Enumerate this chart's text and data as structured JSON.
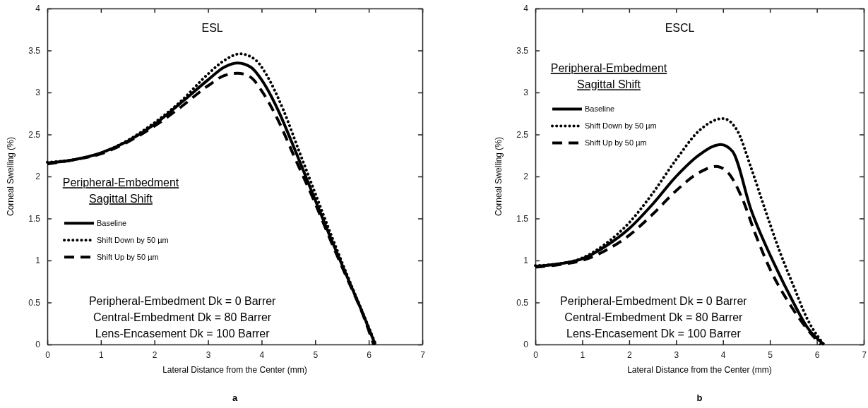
{
  "chart_data": [
    {
      "type": "line",
      "title": "ESL",
      "xlabel": "Lateral Distance from the Center (mm)",
      "ylabel": "Corneal Swelling (%)",
      "legend_title": "Peripheral-Embedment\nSagittal Shift",
      "legend": "left",
      "xlim": [
        0,
        7
      ],
      "xticks": [
        0,
        1,
        2,
        3,
        4,
        5,
        6,
        7
      ],
      "ylim": [
        0,
        4
      ],
      "yticks": [
        0,
        0.5,
        1,
        1.5,
        2,
        2.5,
        3,
        3.5,
        4
      ],
      "annotations": [
        "Peripheral-Embedment Dk = 0 Barrer",
        "Central-Embedment Dk = 80 Barrer",
        "Lens-Encasement Dk = 100 Barrer",
        "a"
      ],
      "series": [
        {
          "name": "Baseline",
          "color": "#000000",
          "line_style": "solid",
          "x": [
            0,
            0.5,
            1,
            1.5,
            2,
            2.5,
            3,
            3.3,
            3.55,
            3.8,
            4,
            4.3,
            4.6,
            5,
            5.3,
            5.6,
            5.9,
            6.12
          ],
          "values": [
            2.16,
            2.2,
            2.28,
            2.42,
            2.62,
            2.88,
            3.15,
            3.3,
            3.35,
            3.3,
            3.15,
            2.8,
            2.35,
            1.72,
            1.25,
            0.8,
            0.35,
            0
          ]
        },
        {
          "name": "Shift Down by 50 µm",
          "color": "#000000",
          "line_style": "dotted",
          "x": [
            0,
            0.5,
            1,
            1.5,
            2,
            2.5,
            3,
            3.3,
            3.6,
            3.9,
            4.1,
            4.4,
            4.7,
            5,
            5.3,
            5.6,
            5.9,
            6.13
          ],
          "values": [
            2.17,
            2.2,
            2.28,
            2.43,
            2.64,
            2.9,
            3.22,
            3.38,
            3.46,
            3.38,
            3.2,
            2.8,
            2.3,
            1.8,
            1.3,
            0.82,
            0.36,
            0
          ]
        },
        {
          "name": "Shift Up by 50 µm",
          "color": "#000000",
          "line_style": "dashed",
          "x": [
            0,
            0.5,
            1,
            1.5,
            2,
            2.5,
            3,
            3.3,
            3.55,
            3.8,
            4,
            4.3,
            4.6,
            5,
            5.3,
            5.6,
            5.9,
            6.09
          ],
          "values": [
            2.15,
            2.2,
            2.27,
            2.41,
            2.6,
            2.83,
            3.08,
            3.2,
            3.23,
            3.18,
            3.02,
            2.68,
            2.25,
            1.68,
            1.22,
            0.78,
            0.34,
            0
          ]
        }
      ]
    },
    {
      "type": "line",
      "title": "ESCL",
      "xlabel": "Lateral Distance from the Center (mm)",
      "ylabel": "Corneal Swelling (%)",
      "legend_title": "Peripheral-Embedment\nSagittal Shift",
      "legend": "top left",
      "xlim": [
        0,
        7
      ],
      "xticks": [
        0,
        1,
        2,
        3,
        4,
        5,
        6,
        7
      ],
      "ylim": [
        0,
        4
      ],
      "yticks": [
        0,
        0.5,
        1,
        1.5,
        2,
        2.5,
        3,
        3.5,
        4
      ],
      "annotations": [
        "Peripheral-Embedment Dk = 0 Barrer",
        "Central-Embedment Dk = 80 Barrer",
        "Lens-Encasement Dk = 100 Barrer",
        "b"
      ],
      "series": [
        {
          "name": "Baseline",
          "color": "#000000",
          "line_style": "solid",
          "x": [
            0,
            0.5,
            1,
            1.5,
            2,
            2.5,
            3,
            3.5,
            3.95,
            4.2,
            4.6,
            5.1,
            5.5,
            5.8,
            6.15
          ],
          "values": [
            0.93,
            0.96,
            1.02,
            1.17,
            1.38,
            1.67,
            2.0,
            2.26,
            2.38,
            2.3,
            1.6,
            0.95,
            0.5,
            0.2,
            0
          ]
        },
        {
          "name": "Shift Down by 50 µm",
          "color": "#000000",
          "line_style": "dotted",
          "x": [
            0,
            0.5,
            1,
            1.5,
            2,
            2.5,
            3,
            3.5,
            4,
            4.3,
            4.6,
            4.9,
            5.2,
            5.5,
            5.8,
            6.15
          ],
          "values": [
            0.94,
            0.96,
            1.03,
            1.2,
            1.45,
            1.8,
            2.2,
            2.55,
            2.69,
            2.55,
            2.1,
            1.6,
            1.12,
            0.7,
            0.3,
            0
          ]
        },
        {
          "name": "Shift Up by 50 µm",
          "color": "#000000",
          "line_style": "dashed",
          "x": [
            0,
            0.5,
            1,
            1.5,
            2,
            2.5,
            3,
            3.5,
            3.85,
            4.1,
            4.4,
            4.7,
            5,
            5.4,
            5.8,
            6.08
          ],
          "values": [
            0.92,
            0.95,
            1.0,
            1.12,
            1.3,
            1.55,
            1.83,
            2.05,
            2.12,
            2.05,
            1.75,
            1.3,
            0.9,
            0.5,
            0.18,
            0
          ]
        }
      ]
    }
  ]
}
